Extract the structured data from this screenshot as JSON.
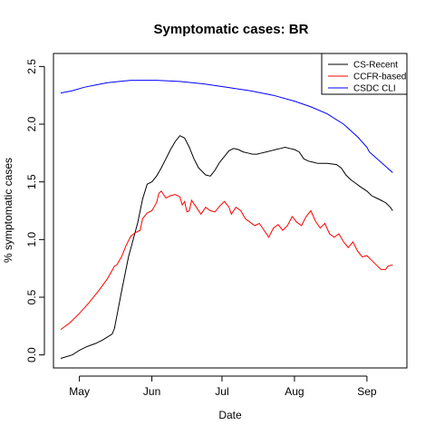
{
  "chart_data": {
    "type": "line",
    "title": "Symptomatic cases: BR",
    "xlabel": "Date",
    "ylabel": "% symptomatic cases",
    "xlim": [
      "2020-04-23",
      "2020-09-15"
    ],
    "ylim": [
      -0.05,
      2.55
    ],
    "x_ticks": [
      {
        "date": "2020-05-01",
        "label": "May"
      },
      {
        "date": "2020-06-01",
        "label": "Jun"
      },
      {
        "date": "2020-07-01",
        "label": "Jul"
      },
      {
        "date": "2020-08-01",
        "label": "Aug"
      },
      {
        "date": "2020-09-01",
        "label": "Sep"
      }
    ],
    "y_ticks": [
      0.0,
      0.5,
      1.0,
      1.5,
      2.0,
      2.5
    ],
    "y_tick_labels": [
      "0.0",
      "0.5",
      "1.0",
      "1.5",
      "2.0",
      "2.5"
    ],
    "legend_position": "top-right",
    "grid": false,
    "series": [
      {
        "name": "CS-Recent",
        "color": "#000000",
        "points": [
          [
            "2020-04-23",
            -0.03
          ],
          [
            "2020-04-28",
            0.0
          ],
          [
            "2020-05-01",
            0.04
          ],
          [
            "2020-05-04",
            0.07
          ],
          [
            "2020-05-08",
            0.1
          ],
          [
            "2020-05-11",
            0.13
          ],
          [
            "2020-05-15",
            0.18
          ],
          [
            "2020-05-16",
            0.23
          ],
          [
            "2020-05-19",
            0.55
          ],
          [
            "2020-05-22",
            0.85
          ],
          [
            "2020-05-24",
            1.0
          ],
          [
            "2020-05-26",
            1.15
          ],
          [
            "2020-05-28",
            1.35
          ],
          [
            "2020-05-30",
            1.48
          ],
          [
            "2020-06-01",
            1.5
          ],
          [
            "2020-06-03",
            1.55
          ],
          [
            "2020-06-05",
            1.62
          ],
          [
            "2020-06-07",
            1.7
          ],
          [
            "2020-06-09",
            1.78
          ],
          [
            "2020-06-11",
            1.85
          ],
          [
            "2020-06-13",
            1.9
          ],
          [
            "2020-06-15",
            1.88
          ],
          [
            "2020-06-17",
            1.8
          ],
          [
            "2020-06-19",
            1.7
          ],
          [
            "2020-06-21",
            1.62
          ],
          [
            "2020-06-22",
            1.6
          ],
          [
            "2020-06-24",
            1.56
          ],
          [
            "2020-06-26",
            1.55
          ],
          [
            "2020-06-28",
            1.6
          ],
          [
            "2020-06-30",
            1.67
          ],
          [
            "2020-07-02",
            1.72
          ],
          [
            "2020-07-04",
            1.77
          ],
          [
            "2020-07-06",
            1.79
          ],
          [
            "2020-07-08",
            1.78
          ],
          [
            "2020-07-10",
            1.76
          ],
          [
            "2020-07-12",
            1.75
          ],
          [
            "2020-07-14",
            1.74
          ],
          [
            "2020-07-16",
            1.74
          ],
          [
            "2020-07-18",
            1.75
          ],
          [
            "2020-07-20",
            1.76
          ],
          [
            "2020-07-22",
            1.77
          ],
          [
            "2020-07-24",
            1.78
          ],
          [
            "2020-07-26",
            1.79
          ],
          [
            "2020-07-28",
            1.8
          ],
          [
            "2020-07-30",
            1.79
          ],
          [
            "2020-08-01",
            1.78
          ],
          [
            "2020-08-03",
            1.76
          ],
          [
            "2020-08-05",
            1.7
          ],
          [
            "2020-08-07",
            1.68
          ],
          [
            "2020-08-09",
            1.67
          ],
          [
            "2020-08-11",
            1.66
          ],
          [
            "2020-08-15",
            1.66
          ],
          [
            "2020-08-19",
            1.65
          ],
          [
            "2020-08-21",
            1.62
          ],
          [
            "2020-08-23",
            1.56
          ],
          [
            "2020-08-25",
            1.52
          ],
          [
            "2020-08-27",
            1.49
          ],
          [
            "2020-08-29",
            1.46
          ],
          [
            "2020-09-01",
            1.42
          ],
          [
            "2020-09-03",
            1.38
          ],
          [
            "2020-09-05",
            1.36
          ],
          [
            "2020-09-07",
            1.34
          ],
          [
            "2020-09-09",
            1.32
          ],
          [
            "2020-09-11",
            1.28
          ],
          [
            "2020-09-12",
            1.25
          ]
        ]
      },
      {
        "name": "CCFR-based",
        "color": "#ff0000",
        "points": [
          [
            "2020-04-23",
            0.22
          ],
          [
            "2020-04-27",
            0.28
          ],
          [
            "2020-05-01",
            0.36
          ],
          [
            "2020-05-05",
            0.45
          ],
          [
            "2020-05-09",
            0.55
          ],
          [
            "2020-05-13",
            0.66
          ],
          [
            "2020-05-16",
            0.77
          ],
          [
            "2020-05-17",
            0.78
          ],
          [
            "2020-05-19",
            0.85
          ],
          [
            "2020-05-21",
            0.95
          ],
          [
            "2020-05-23",
            1.03
          ],
          [
            "2020-05-25",
            1.06
          ],
          [
            "2020-05-27",
            1.08
          ],
          [
            "2020-05-28",
            1.18
          ],
          [
            "2020-05-30",
            1.23
          ],
          [
            "2020-06-01",
            1.25
          ],
          [
            "2020-06-03",
            1.32
          ],
          [
            "2020-06-04",
            1.4
          ],
          [
            "2020-06-05",
            1.42
          ],
          [
            "2020-06-07",
            1.36
          ],
          [
            "2020-06-09",
            1.38
          ],
          [
            "2020-06-11",
            1.39
          ],
          [
            "2020-06-13",
            1.37
          ],
          [
            "2020-06-14",
            1.3
          ],
          [
            "2020-06-15",
            1.33
          ],
          [
            "2020-06-16",
            1.24
          ],
          [
            "2020-06-17",
            1.25
          ],
          [
            "2020-06-18",
            1.34
          ],
          [
            "2020-06-20",
            1.28
          ],
          [
            "2020-06-22",
            1.22
          ],
          [
            "2020-06-24",
            1.28
          ],
          [
            "2020-06-26",
            1.25
          ],
          [
            "2020-06-28",
            1.24
          ],
          [
            "2020-06-30",
            1.29
          ],
          [
            "2020-07-02",
            1.33
          ],
          [
            "2020-07-04",
            1.28
          ],
          [
            "2020-07-05",
            1.22
          ],
          [
            "2020-07-07",
            1.28
          ],
          [
            "2020-07-09",
            1.25
          ],
          [
            "2020-07-11",
            1.18
          ],
          [
            "2020-07-13",
            1.15
          ],
          [
            "2020-07-15",
            1.12
          ],
          [
            "2020-07-17",
            1.14
          ],
          [
            "2020-07-19",
            1.08
          ],
          [
            "2020-07-21",
            1.02
          ],
          [
            "2020-07-23",
            1.1
          ],
          [
            "2020-07-25",
            1.13
          ],
          [
            "2020-07-27",
            1.08
          ],
          [
            "2020-07-29",
            1.12
          ],
          [
            "2020-07-31",
            1.2
          ],
          [
            "2020-08-02",
            1.15
          ],
          [
            "2020-08-04",
            1.12
          ],
          [
            "2020-08-06",
            1.2
          ],
          [
            "2020-08-08",
            1.25
          ],
          [
            "2020-08-10",
            1.16
          ],
          [
            "2020-08-12",
            1.1
          ],
          [
            "2020-08-14",
            1.14
          ],
          [
            "2020-08-16",
            1.05
          ],
          [
            "2020-08-18",
            1.02
          ],
          [
            "2020-08-20",
            1.05
          ],
          [
            "2020-08-22",
            0.98
          ],
          [
            "2020-08-24",
            0.93
          ],
          [
            "2020-08-26",
            0.98
          ],
          [
            "2020-08-28",
            0.9
          ],
          [
            "2020-08-30",
            0.85
          ],
          [
            "2020-09-01",
            0.86
          ],
          [
            "2020-09-03",
            0.82
          ],
          [
            "2020-09-05",
            0.78
          ],
          [
            "2020-09-07",
            0.74
          ],
          [
            "2020-09-09",
            0.74
          ],
          [
            "2020-09-10",
            0.77
          ],
          [
            "2020-09-12",
            0.78
          ]
        ]
      },
      {
        "name": "CSDC CLI",
        "color": "#0000ff",
        "points": [
          [
            "2020-04-23",
            2.27
          ],
          [
            "2020-04-28",
            2.29
          ],
          [
            "2020-05-03",
            2.32
          ],
          [
            "2020-05-08",
            2.34
          ],
          [
            "2020-05-13",
            2.36
          ],
          [
            "2020-05-18",
            2.37
          ],
          [
            "2020-05-23",
            2.38
          ],
          [
            "2020-05-28",
            2.38
          ],
          [
            "2020-06-03",
            2.38
          ],
          [
            "2020-06-13",
            2.37
          ],
          [
            "2020-06-23",
            2.35
          ],
          [
            "2020-07-03",
            2.32
          ],
          [
            "2020-07-13",
            2.29
          ],
          [
            "2020-07-23",
            2.25
          ],
          [
            "2020-08-01",
            2.2
          ],
          [
            "2020-08-08",
            2.15
          ],
          [
            "2020-08-15",
            2.09
          ],
          [
            "2020-08-22",
            2.0
          ],
          [
            "2020-08-28",
            1.89
          ],
          [
            "2020-09-01",
            1.8
          ],
          [
            "2020-09-02",
            1.76
          ],
          [
            "2020-09-07",
            1.67
          ],
          [
            "2020-09-12",
            1.58
          ]
        ]
      }
    ]
  }
}
